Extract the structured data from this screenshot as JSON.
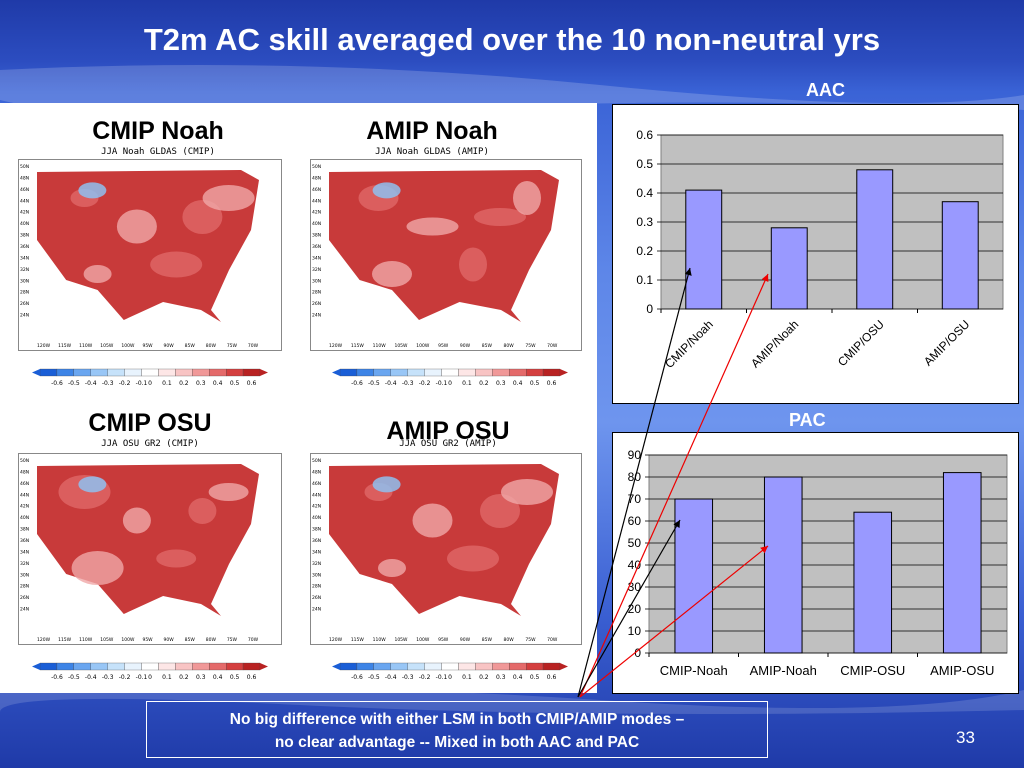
{
  "slide": {
    "title": "T2m AC skill averaged over the 10 non-neutral yrs",
    "page_number": "33",
    "note_line1": "No big difference with either LSM in both CMIP/AMIP modes –",
    "note_line2": "no clear advantage -- Mixed in both AAC and PAC"
  },
  "maps": [
    {
      "title": "CMIP Noah",
      "subtitle": "JJA Noah GLDAS (CMIP)"
    },
    {
      "title": "AMIP Noah",
      "subtitle": "JJA Noah GLDAS (AMIP)"
    },
    {
      "title": "CMIP OSU",
      "subtitle": "JJA OSU GR2 (CMIP)"
    },
    {
      "title": "AMIP OSU",
      "subtitle": "JJA OSU GR2 (AMIP)"
    }
  ],
  "map_axis": {
    "lat_labels": [
      "50N",
      "48N",
      "46N",
      "44N",
      "42N",
      "40N",
      "38N",
      "36N",
      "34N",
      "32N",
      "30N",
      "28N",
      "26N",
      "24N"
    ],
    "lon_labels": [
      "120W",
      "115W",
      "110W",
      "105W",
      "100W",
      "95W",
      "90W",
      "85W",
      "80W",
      "75W",
      "70W"
    ],
    "colorbar_labels": [
      "-0.6",
      "-0.5",
      "-0.4",
      "-0.3",
      "-0.2",
      "-0.1",
      "0",
      "0.1",
      "0.2",
      "0.3",
      "0.4",
      "0.5",
      "0.6"
    ],
    "colorbar_colors": [
      "#1a5ed6",
      "#3d84e6",
      "#6aa6f0",
      "#98c6f6",
      "#c6e2fa",
      "#e8f3fd",
      "#ffffff",
      "#fde6e6",
      "#f8c4c4",
      "#f09898",
      "#e46a6a",
      "#d43f3f",
      "#b82222"
    ]
  },
  "chart_data": [
    {
      "type": "bar",
      "title": "AAC",
      "categories": [
        "CMIP/Noah",
        "AMIP/Noah",
        "CMIP/OSU",
        "AMIP/OSU"
      ],
      "values": [
        0.41,
        0.28,
        0.48,
        0.37
      ],
      "yticks": [
        "0",
        "0.1",
        "0.2",
        "0.3",
        "0.4",
        "0.5",
        "0.6"
      ],
      "ylim": [
        0,
        0.6
      ],
      "bar_color": "#9999ff",
      "plot_bg": "#c0c0c0"
    },
    {
      "type": "bar",
      "title": "PAC",
      "categories": [
        "CMIP-Noah",
        "AMIP-Noah",
        "CMIP-OSU",
        "AMIP-OSU"
      ],
      "values": [
        70,
        80,
        64,
        82
      ],
      "yticks": [
        "0",
        "10",
        "20",
        "30",
        "40",
        "50",
        "60",
        "70",
        "80",
        "90"
      ],
      "ylim": [
        0,
        90
      ],
      "bar_color": "#9999ff",
      "plot_bg": "#c0c0c0"
    }
  ]
}
